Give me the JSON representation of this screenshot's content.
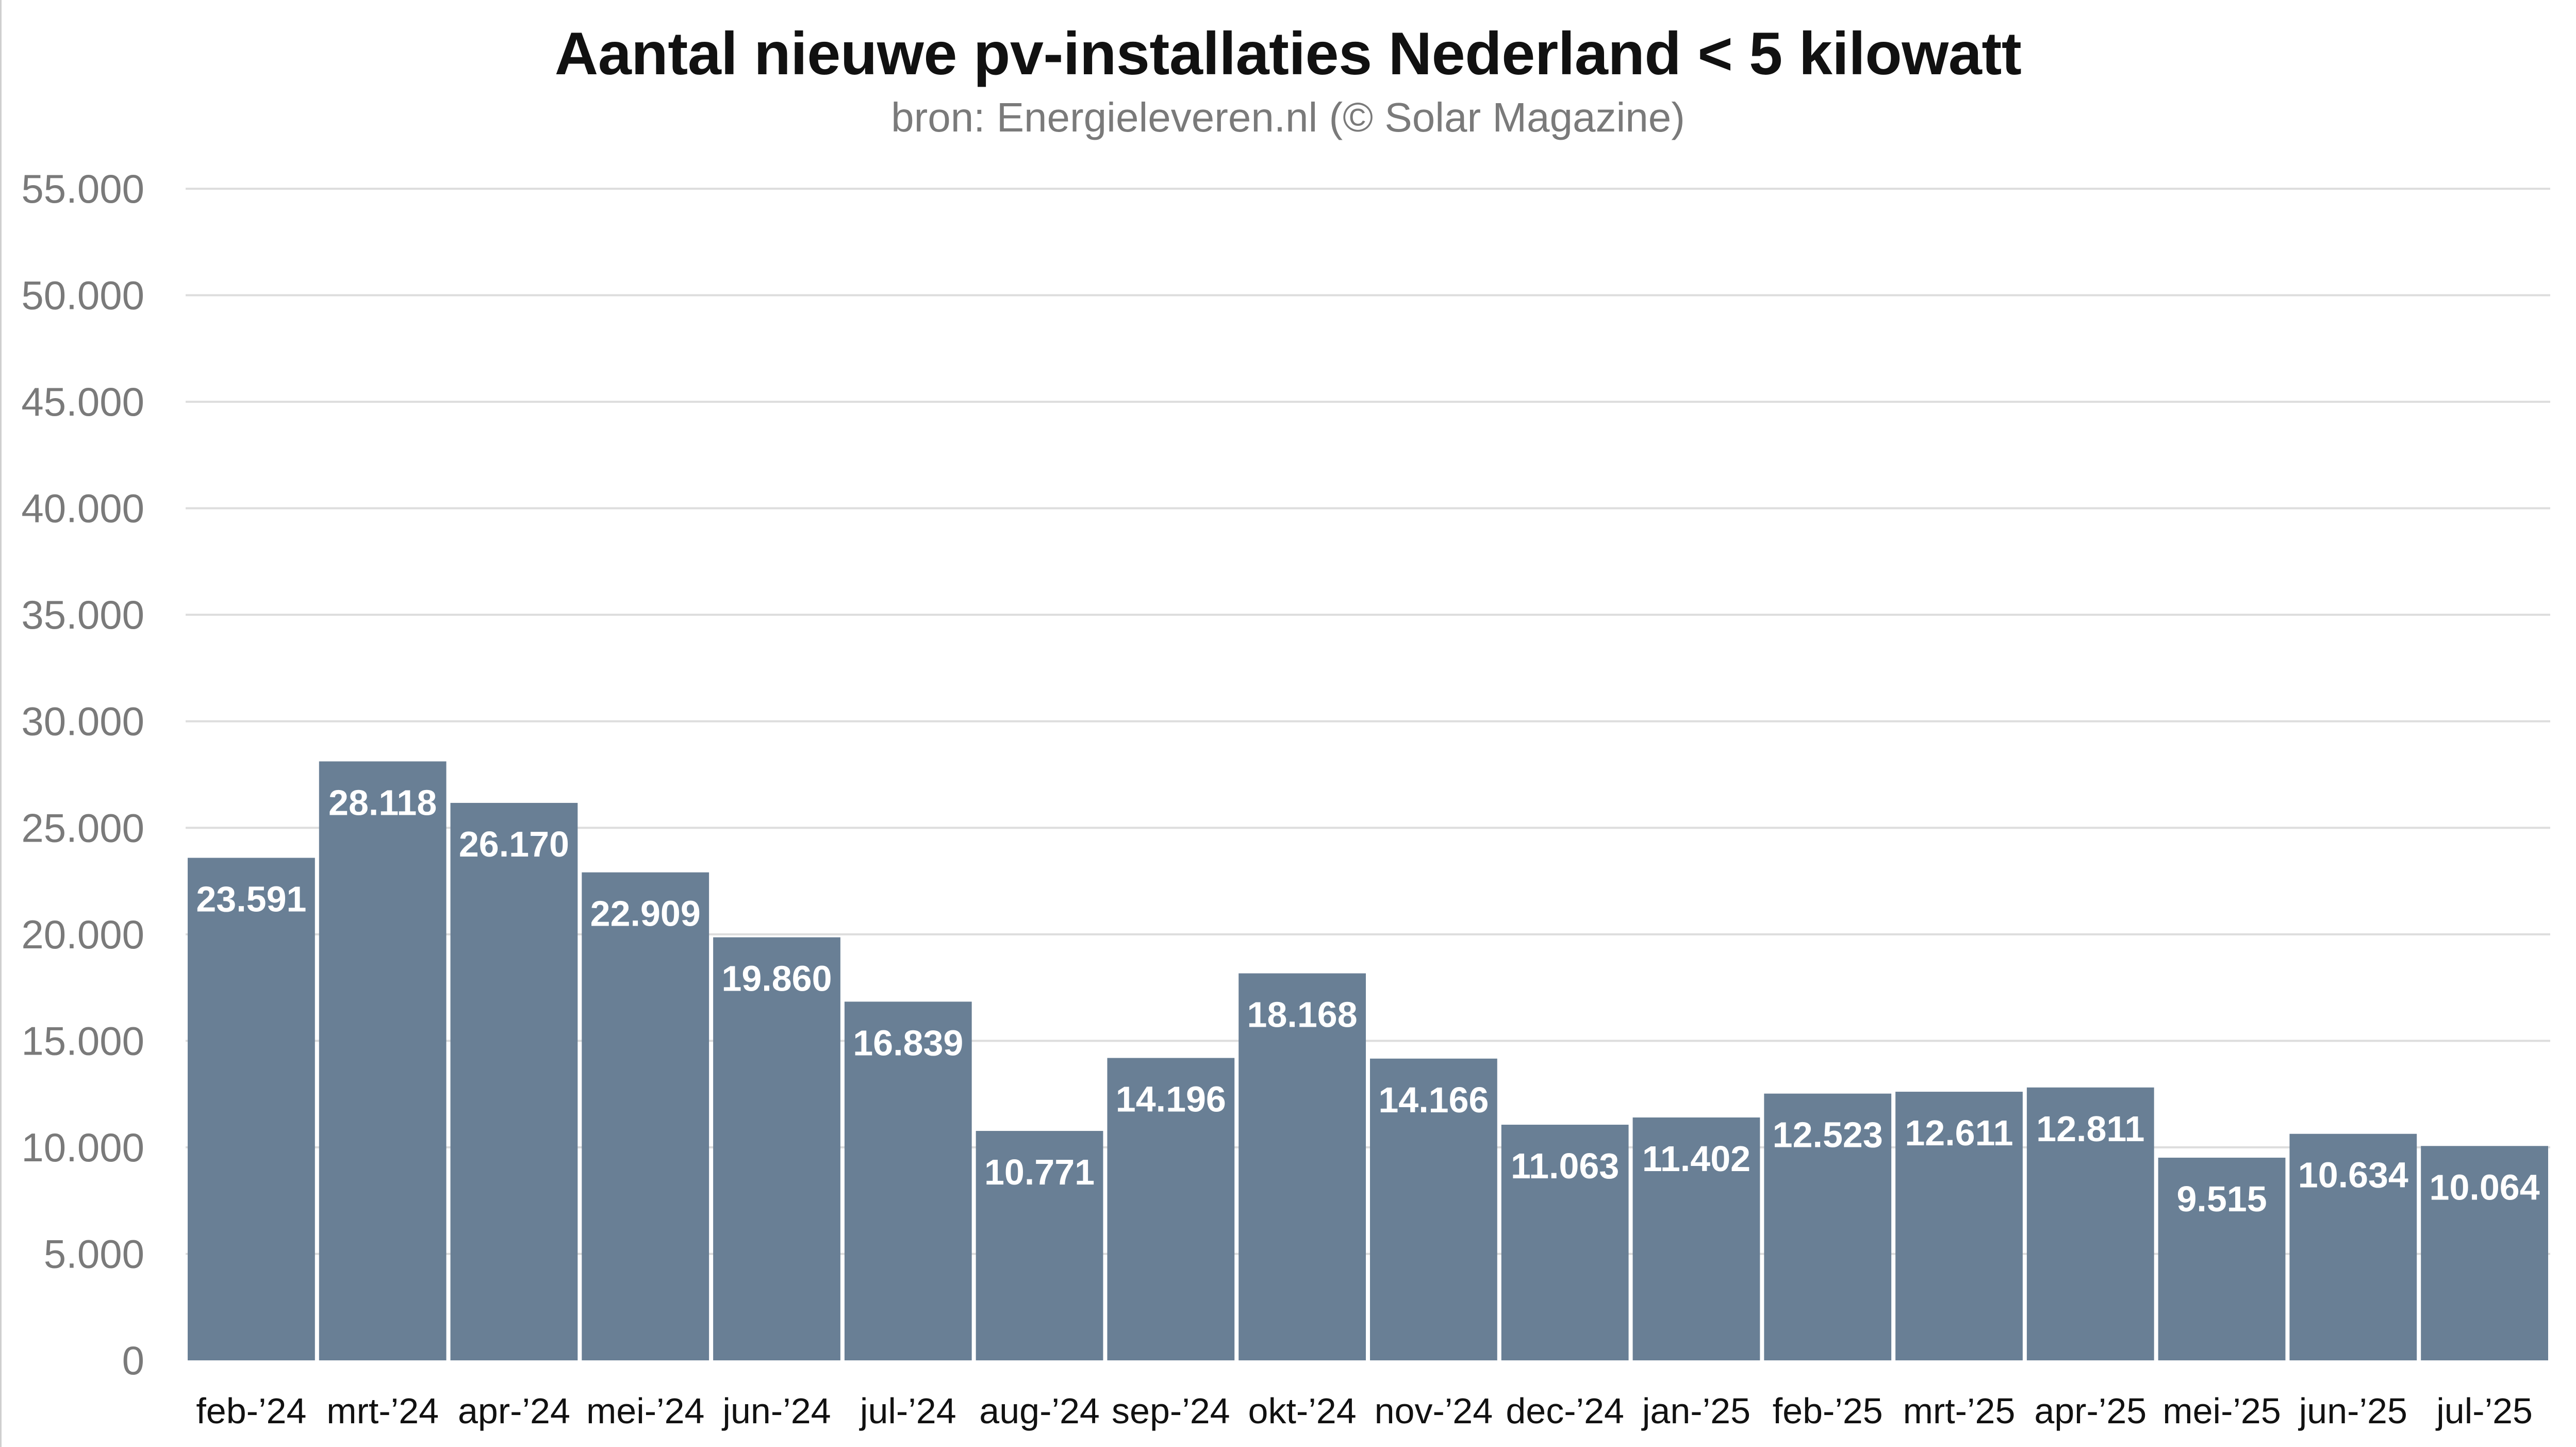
{
  "chart_data": {
    "type": "bar",
    "title": "Aantal nieuwe pv-installaties Nederland < 5 kilowatt",
    "subtitle": "bron: Energieleveren.nl (© Solar Magazine)",
    "categories": [
      "feb-’24",
      "mrt-’24",
      "apr-’24",
      "mei-’24",
      "jun-’24",
      "jul-’24",
      "aug-’24",
      "sep-’24",
      "okt-’24",
      "nov-’24",
      "dec-’24",
      "jan-’25",
      "feb-’25",
      "mrt-’25",
      "apr-’25",
      "mei-’25",
      "jun-’25",
      "jul-’25"
    ],
    "values": [
      23591,
      28118,
      26170,
      22909,
      19860,
      16839,
      10771,
      14196,
      18168,
      14166,
      11063,
      11402,
      12523,
      12611,
      12811,
      9515,
      10634,
      10064
    ],
    "value_labels": [
      "23.591",
      "28.118",
      "26.170",
      "22.909",
      "19.860",
      "16.839",
      "10.771",
      "14.196",
      "18.168",
      "14.166",
      "11.063",
      "11.402",
      "12.523",
      "12.611",
      "12.811",
      "9.515",
      "10.634",
      "10.064"
    ],
    "y_ticks": [
      0,
      5000,
      10000,
      15000,
      20000,
      25000,
      30000,
      35000,
      40000,
      45000,
      50000,
      55000
    ],
    "y_tick_labels": [
      "0",
      "5.000",
      "10.000",
      "15.000",
      "20.000",
      "25.000",
      "30.000",
      "35.000",
      "40.000",
      "45.000",
      "50.000",
      "55.000"
    ],
    "ylim": [
      0,
      55000
    ],
    "xlabel": "",
    "ylabel": "",
    "grid": true,
    "legend": "none",
    "colors": {
      "bar": "#697f95",
      "grid": "#dddddd",
      "label": "#ffffff",
      "tick": "#7a7a7a",
      "category": "#111111"
    }
  }
}
